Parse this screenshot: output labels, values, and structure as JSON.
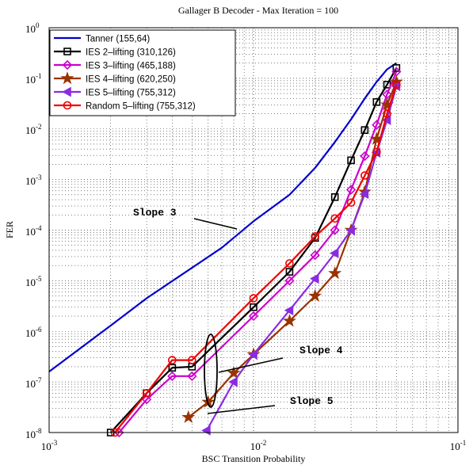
{
  "chart_data": {
    "type": "line",
    "title": "Gallager B Decoder - Max Iteration = 100",
    "xlabel": "BSC Transition Probability",
    "ylabel": "FER",
    "x_scale": "log",
    "y_scale": "log",
    "xlim": [
      0.001,
      0.1
    ],
    "ylim": [
      1e-08,
      1
    ],
    "grid": true,
    "legend_position": "top-left",
    "x_ticks": [
      {
        "value": 0.001,
        "base": "10",
        "exp": "-3"
      },
      {
        "value": 0.01,
        "base": "10",
        "exp": "-2"
      },
      {
        "value": 0.1,
        "base": "10",
        "exp": "-1"
      }
    ],
    "y_ticks": [
      {
        "value": 1,
        "base": "10",
        "exp": "0"
      },
      {
        "value": 0.1,
        "base": "10",
        "exp": "-1"
      },
      {
        "value": 0.01,
        "base": "10",
        "exp": "-2"
      },
      {
        "value": 0.001,
        "base": "10",
        "exp": "-3"
      },
      {
        "value": 0.0001,
        "base": "10",
        "exp": "-4"
      },
      {
        "value": 1e-05,
        "base": "10",
        "exp": "-5"
      },
      {
        "value": 1e-06,
        "base": "10",
        "exp": "-6"
      },
      {
        "value": 1e-07,
        "base": "10",
        "exp": "-7"
      },
      {
        "value": 1e-08,
        "base": "10",
        "exp": "-8"
      }
    ],
    "series": [
      {
        "name": "Tanner (155,64)",
        "color": "#0000cc",
        "marker": "none",
        "x": [
          0.001,
          0.002,
          0.003,
          0.005,
          0.007,
          0.01,
          0.015,
          0.02,
          0.025,
          0.03,
          0.035,
          0.04,
          0.045,
          0.05
        ],
        "y": [
          1.6e-07,
          1.3e-06,
          4.5e-06,
          1.8e-05,
          4.5e-05,
          0.00015,
          0.0005,
          0.0017,
          0.0055,
          0.0155,
          0.04,
          0.085,
          0.15,
          0.2
        ]
      },
      {
        "name": "IES 2–lifting (310,126)",
        "color": "#000000",
        "marker": "square",
        "x": [
          0.002,
          0.003,
          0.004,
          0.005,
          0.01,
          0.015,
          0.02,
          0.025,
          0.03,
          0.035,
          0.04,
          0.045,
          0.05
        ],
        "y": [
          1e-08,
          6e-08,
          1.9e-07,
          2e-07,
          3e-06,
          1.5e-05,
          7e-05,
          0.00045,
          0.0024,
          0.0095,
          0.034,
          0.075,
          0.16
        ]
      },
      {
        "name": "IES 3–lifting (465,188)",
        "color": "#cc00cc",
        "marker": "diamond",
        "x": [
          0.0022,
          0.003,
          0.004,
          0.005,
          0.01,
          0.015,
          0.02,
          0.025,
          0.03,
          0.035,
          0.04,
          0.045,
          0.05
        ],
        "y": [
          1e-08,
          4.5e-08,
          1.3e-07,
          1.3e-07,
          2e-06,
          1e-05,
          3.2e-05,
          0.0001,
          0.00063,
          0.0029,
          0.012,
          0.048,
          0.135
        ]
      },
      {
        "name": "IES 4–lifting (620,250)",
        "color": "#993300",
        "marker": "star",
        "x": [
          0.0048,
          0.006,
          0.008,
          0.01,
          0.015,
          0.02,
          0.025,
          0.03,
          0.035,
          0.04,
          0.045,
          0.05
        ],
        "y": [
          2e-08,
          4e-08,
          1.5e-07,
          3.5e-07,
          1.6e-06,
          5e-06,
          1.4e-05,
          0.0001,
          0.00057,
          0.0063,
          0.03,
          0.085
        ]
      },
      {
        "name": "IES 5–lifting (755,312)",
        "color": "#8a2be2",
        "marker": "triangle-left",
        "x": [
          0.0059,
          0.008,
          0.01,
          0.015,
          0.02,
          0.025,
          0.03,
          0.035,
          0.04,
          0.045,
          0.05
        ],
        "y": [
          1.1e-08,
          1e-07,
          3.5e-07,
          2.6e-06,
          1.1e-05,
          3.5e-05,
          0.0001,
          0.00052,
          0.0034,
          0.015,
          0.07
        ]
      },
      {
        "name": "Random 5–lifting (755,312)",
        "color": "#ee0000",
        "marker": "circle",
        "x": [
          0.0021,
          0.003,
          0.004,
          0.005,
          0.01,
          0.015,
          0.02,
          0.025,
          0.03,
          0.035,
          0.04,
          0.045,
          0.05
        ],
        "y": [
          1e-08,
          6e-08,
          2.7e-07,
          2.7e-07,
          4.5e-06,
          2.2e-05,
          7.5e-05,
          0.00017,
          0.00035,
          0.0012,
          0.0035,
          0.02,
          0.075
        ]
      }
    ],
    "annotations": [
      {
        "text": "Slope 3"
      },
      {
        "text": "Slope 4"
      },
      {
        "text": "Slope 5"
      }
    ]
  }
}
